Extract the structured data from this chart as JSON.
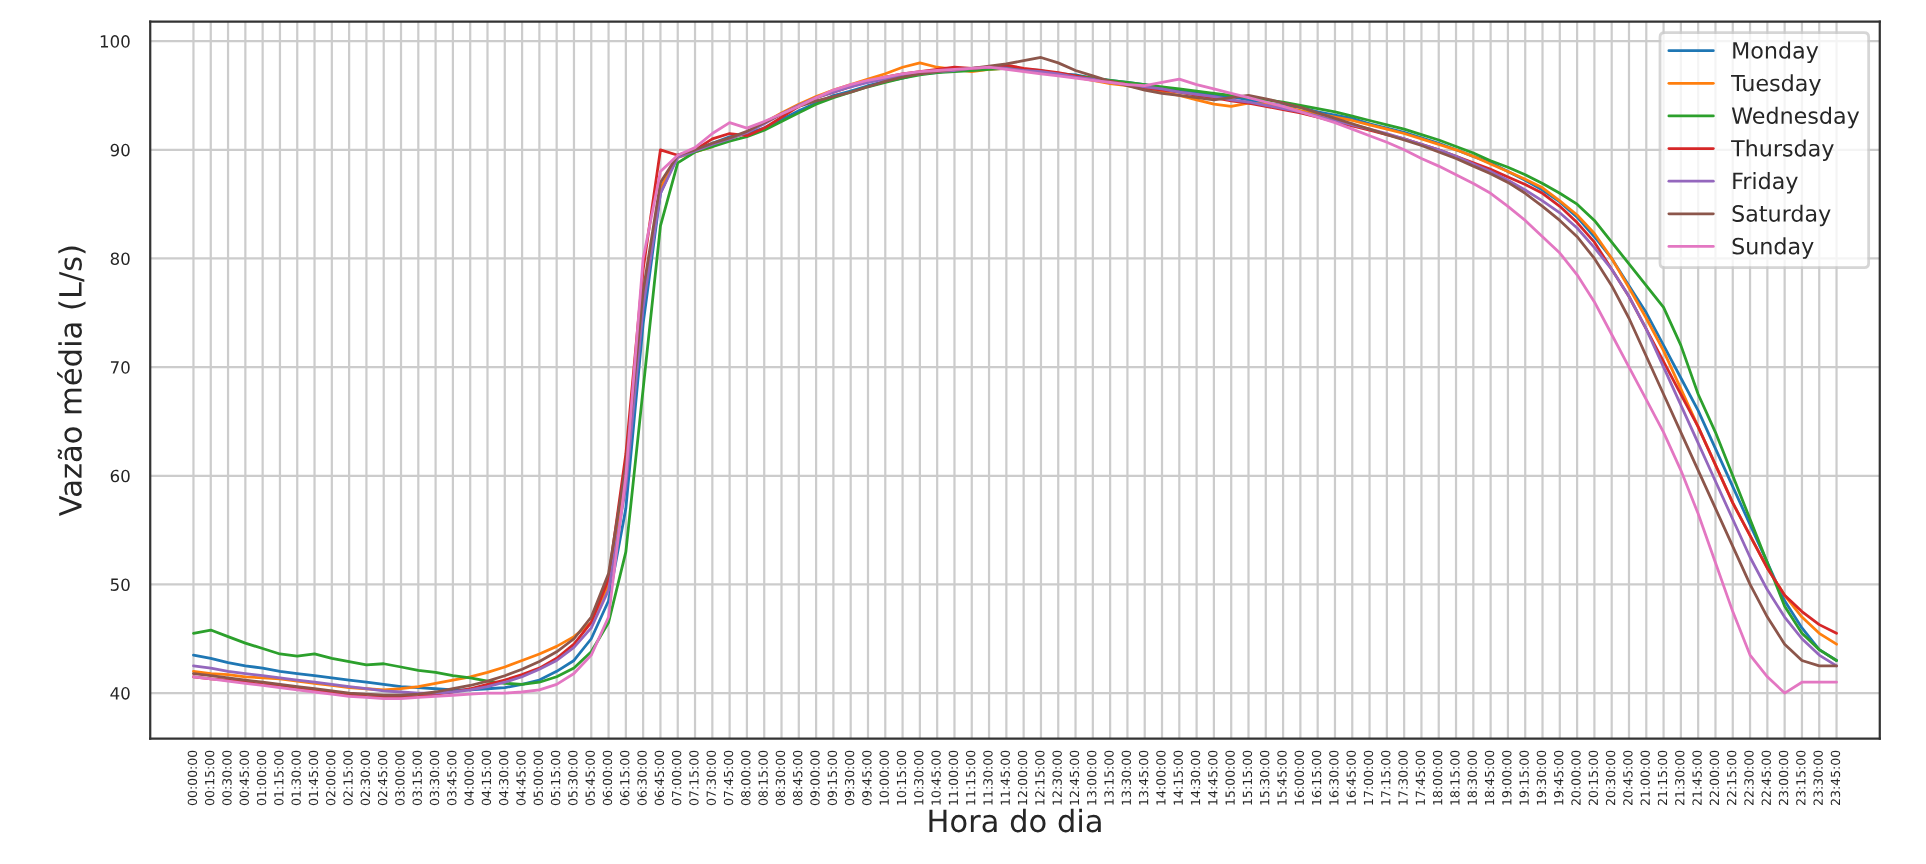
{
  "chart_data": {
    "type": "line",
    "xlabel": "Hora do dia",
    "ylabel": "Vazão média (L/s)",
    "categories": [
      "00:00:00",
      "00:15:00",
      "00:30:00",
      "00:45:00",
      "01:00:00",
      "01:15:00",
      "01:30:00",
      "01:45:00",
      "02:00:00",
      "02:15:00",
      "02:30:00",
      "02:45:00",
      "03:00:00",
      "03:15:00",
      "03:30:00",
      "03:45:00",
      "04:00:00",
      "04:15:00",
      "04:30:00",
      "04:45:00",
      "05:00:00",
      "05:15:00",
      "05:30:00",
      "05:45:00",
      "06:00:00",
      "06:15:00",
      "06:30:00",
      "06:45:00",
      "07:00:00",
      "07:15:00",
      "07:30:00",
      "07:45:00",
      "08:00:00",
      "08:15:00",
      "08:30:00",
      "08:45:00",
      "09:00:00",
      "09:15:00",
      "09:30:00",
      "09:45:00",
      "10:00:00",
      "10:15:00",
      "10:30:00",
      "10:45:00",
      "11:00:00",
      "11:15:00",
      "11:30:00",
      "11:45:00",
      "12:00:00",
      "12:15:00",
      "12:30:00",
      "12:45:00",
      "13:00:00",
      "13:15:00",
      "13:30:00",
      "13:45:00",
      "14:00:00",
      "14:15:00",
      "14:30:00",
      "14:45:00",
      "15:00:00",
      "15:15:00",
      "15:30:00",
      "15:45:00",
      "16:00:00",
      "16:15:00",
      "16:30:00",
      "16:45:00",
      "17:00:00",
      "17:15:00",
      "17:30:00",
      "17:45:00",
      "18:00:00",
      "18:15:00",
      "18:30:00",
      "18:45:00",
      "19:00:00",
      "19:15:00",
      "19:30:00",
      "19:45:00",
      "20:00:00",
      "20:15:00",
      "20:30:00",
      "20:45:00",
      "21:00:00",
      "21:15:00",
      "21:30:00",
      "21:45:00",
      "22:00:00",
      "22:15:00",
      "22:30:00",
      "22:45:00",
      "23:00:00",
      "23:15:00",
      "23:30:00",
      "23:45:00"
    ],
    "ylim": [
      35.8,
      101.8
    ],
    "yticks": [
      40,
      50,
      60,
      70,
      80,
      90,
      100
    ],
    "grid": true,
    "legend": "top right",
    "line_style": "solid",
    "series": [
      {
        "name": "Monday",
        "color": "#1f77b4",
        "values": [
          43.5,
          43.2,
          42.8,
          42.5,
          42.3,
          42.0,
          41.8,
          41.6,
          41.4,
          41.2,
          41.0,
          40.8,
          40.6,
          40.5,
          40.4,
          40.3,
          40.3,
          40.4,
          40.5,
          40.8,
          41.2,
          42.0,
          43.0,
          45.0,
          48.5,
          57.0,
          74.0,
          86.0,
          89.5,
          90.0,
          90.6,
          91.2,
          91.5,
          92.0,
          92.8,
          93.6,
          94.3,
          95.0,
          95.4,
          95.9,
          96.3,
          96.6,
          97.0,
          97.1,
          97.4,
          97.3,
          97.6,
          97.7,
          97.4,
          97.3,
          97.0,
          96.9,
          96.6,
          96.4,
          96.2,
          96.0,
          95.7,
          95.5,
          95.3,
          95.0,
          94.9,
          94.6,
          94.3,
          94.1,
          93.9,
          93.5,
          93.2,
          92.9,
          92.4,
          92.0,
          91.6,
          91.1,
          90.6,
          90.0,
          89.4,
          88.8,
          88.0,
          87.2,
          86.3,
          85.2,
          83.8,
          82.0,
          80.0,
          77.5,
          75.0,
          72.0,
          69.0,
          66.0,
          62.5,
          59.0,
          55.5,
          52.0,
          48.5,
          46.0,
          44.0,
          43.0
        ]
      },
      {
        "name": "Tuesday",
        "color": "#ff7f0e",
        "values": [
          42.0,
          41.8,
          41.7,
          41.5,
          41.4,
          41.3,
          41.1,
          40.9,
          40.7,
          40.5,
          40.4,
          40.3,
          40.4,
          40.6,
          40.9,
          41.2,
          41.5,
          41.9,
          42.4,
          43.0,
          43.6,
          44.3,
          45.2,
          46.5,
          50.0,
          60.0,
          76.0,
          86.5,
          89.3,
          89.8,
          90.3,
          91.0,
          91.6,
          92.5,
          93.4,
          94.2,
          94.9,
          95.5,
          96.0,
          96.5,
          97.0,
          97.6,
          98.0,
          97.6,
          97.4,
          97.2,
          97.4,
          97.5,
          97.3,
          97.1,
          96.9,
          96.7,
          96.4,
          96.1,
          95.9,
          95.6,
          95.3,
          95.0,
          94.6,
          94.2,
          94.0,
          94.3,
          94.2,
          94.0,
          93.6,
          93.3,
          93.0,
          92.7,
          92.3,
          91.9,
          91.5,
          91.0,
          90.5,
          90.0,
          89.4,
          88.7,
          88.0,
          87.3,
          86.5,
          85.3,
          84.0,
          82.3,
          80.0,
          77.3,
          74.5,
          71.5,
          68.0,
          64.5,
          61.0,
          57.5,
          54.5,
          51.5,
          49.0,
          47.0,
          45.5,
          44.5
        ]
      },
      {
        "name": "Wednesday",
        "color": "#2ca02c",
        "values": [
          45.5,
          45.8,
          45.2,
          44.6,
          44.1,
          43.6,
          43.4,
          43.6,
          43.2,
          42.9,
          42.6,
          42.7,
          42.4,
          42.1,
          41.9,
          41.6,
          41.4,
          41.1,
          40.9,
          40.8,
          41.0,
          41.5,
          42.3,
          43.8,
          46.5,
          53.0,
          68.0,
          83.0,
          88.8,
          89.8,
          90.3,
          90.8,
          91.2,
          91.8,
          92.6,
          93.4,
          94.2,
          94.8,
          95.3,
          95.8,
          96.2,
          96.6,
          96.9,
          97.1,
          97.2,
          97.3,
          97.4,
          97.5,
          97.4,
          97.2,
          97.0,
          96.8,
          96.6,
          96.4,
          96.2,
          96.0,
          95.8,
          95.6,
          95.4,
          95.2,
          95.0,
          94.8,
          94.6,
          94.4,
          94.1,
          93.8,
          93.5,
          93.1,
          92.7,
          92.3,
          91.9,
          91.4,
          90.9,
          90.3,
          89.7,
          89.0,
          88.4,
          87.7,
          86.9,
          86.0,
          85.0,
          83.5,
          81.5,
          79.5,
          77.5,
          75.5,
          72.0,
          67.5,
          64.0,
          60.0,
          56.0,
          52.0,
          48.0,
          45.5,
          44.0,
          43.0
        ]
      },
      {
        "name": "Thursday",
        "color": "#d62728",
        "values": [
          41.5,
          41.3,
          41.2,
          41.0,
          40.8,
          40.7,
          40.5,
          40.3,
          40.1,
          39.9,
          39.7,
          39.6,
          39.6,
          39.7,
          39.9,
          40.1,
          40.4,
          40.8,
          41.2,
          41.7,
          42.3,
          43.2,
          44.5,
          46.5,
          50.5,
          62.0,
          79.0,
          90.0,
          89.5,
          90.0,
          91.0,
          91.5,
          91.3,
          92.0,
          93.0,
          94.0,
          94.8,
          95.3,
          95.8,
          96.3,
          96.7,
          97.0,
          97.2,
          97.4,
          97.6,
          97.5,
          97.6,
          97.8,
          97.5,
          97.3,
          97.1,
          96.8,
          96.5,
          96.3,
          96.0,
          95.7,
          95.5,
          95.3,
          95.0,
          94.8,
          94.5,
          94.3,
          94.0,
          93.7,
          93.4,
          93.0,
          92.6,
          92.2,
          91.8,
          91.4,
          91.0,
          90.5,
          90.0,
          89.4,
          88.8,
          88.2,
          87.5,
          86.8,
          86.0,
          84.8,
          83.3,
          81.5,
          79.0,
          76.5,
          73.5,
          70.5,
          67.5,
          64.5,
          61.0,
          57.5,
          54.5,
          51.5,
          49.0,
          47.5,
          46.3,
          45.5
        ]
      },
      {
        "name": "Friday",
        "color": "#9467bd",
        "values": [
          42.5,
          42.3,
          42.0,
          41.8,
          41.6,
          41.4,
          41.2,
          41.0,
          40.8,
          40.6,
          40.4,
          40.2,
          40.1,
          40.0,
          40.0,
          40.1,
          40.3,
          40.6,
          41.0,
          41.5,
          42.2,
          43.0,
          44.2,
          46.0,
          49.5,
          59.0,
          75.5,
          86.0,
          89.3,
          89.9,
          90.5,
          91.0,
          91.6,
          92.4,
          93.3,
          94.1,
          94.8,
          95.3,
          95.8,
          96.2,
          96.5,
          96.8,
          97.0,
          97.2,
          97.3,
          97.5,
          97.6,
          97.5,
          97.3,
          97.2,
          97.0,
          96.7,
          96.5,
          96.2,
          96.0,
          95.8,
          95.6,
          95.3,
          95.1,
          94.9,
          94.6,
          94.4,
          94.1,
          93.8,
          93.5,
          93.1,
          92.7,
          92.3,
          91.9,
          91.5,
          91.0,
          90.5,
          90.0,
          89.4,
          88.7,
          88.0,
          87.2,
          86.3,
          85.3,
          84.2,
          82.8,
          81.0,
          79.0,
          76.5,
          73.5,
          70.0,
          66.5,
          63.0,
          59.5,
          56.0,
          52.5,
          49.5,
          47.0,
          45.0,
          43.5,
          42.5
        ]
      },
      {
        "name": "Saturday",
        "color": "#8c564b",
        "values": [
          41.8,
          41.6,
          41.4,
          41.2,
          41.0,
          40.8,
          40.6,
          40.4,
          40.2,
          40.0,
          39.9,
          39.8,
          39.8,
          39.9,
          40.1,
          40.4,
          40.7,
          41.1,
          41.6,
          42.2,
          42.9,
          43.8,
          45.0,
          47.0,
          51.0,
          61.0,
          77.0,
          87.0,
          89.5,
          90.0,
          90.6,
          91.1,
          91.7,
          92.5,
          93.3,
          94.0,
          94.5,
          94.9,
          95.3,
          95.8,
          96.3,
          96.7,
          97.0,
          97.2,
          97.4,
          97.5,
          97.7,
          97.9,
          98.2,
          98.5,
          98.0,
          97.3,
          96.8,
          96.3,
          95.9,
          95.5,
          95.2,
          95.0,
          94.8,
          94.6,
          94.8,
          95.0,
          94.7,
          94.3,
          93.9,
          93.4,
          92.9,
          92.4,
          91.9,
          91.4,
          90.9,
          90.4,
          89.8,
          89.2,
          88.5,
          87.8,
          87.0,
          86.0,
          84.8,
          83.5,
          82.0,
          80.0,
          77.5,
          74.5,
          71.0,
          67.5,
          64.0,
          60.5,
          57.0,
          53.5,
          50.0,
          47.0,
          44.5,
          43.0,
          42.5,
          42.5
        ]
      },
      {
        "name": "Sunday",
        "color": "#e377c2",
        "values": [
          41.5,
          41.3,
          41.1,
          40.9,
          40.7,
          40.5,
          40.3,
          40.1,
          39.9,
          39.7,
          39.6,
          39.5,
          39.5,
          39.6,
          39.7,
          39.8,
          39.9,
          40.0,
          40.0,
          40.1,
          40.3,
          40.8,
          41.8,
          43.5,
          47.0,
          60.0,
          80.0,
          88.0,
          89.5,
          90.2,
          91.5,
          92.5,
          92.0,
          92.6,
          93.3,
          94.0,
          94.8,
          95.5,
          96.0,
          96.4,
          96.7,
          97.0,
          97.2,
          97.3,
          97.4,
          97.5,
          97.6,
          97.4,
          97.2,
          97.0,
          96.8,
          96.6,
          96.4,
          96.2,
          96.0,
          95.9,
          96.2,
          96.5,
          96.0,
          95.6,
          95.2,
          94.8,
          94.4,
          94.0,
          93.5,
          93.0,
          92.5,
          91.9,
          91.3,
          90.7,
          90.0,
          89.2,
          88.5,
          87.7,
          86.9,
          86.0,
          84.8,
          83.5,
          82.0,
          80.5,
          78.5,
          76.0,
          73.0,
          70.0,
          67.0,
          64.0,
          60.5,
          56.5,
          52.0,
          47.5,
          43.5,
          41.5,
          40.0,
          41.0,
          41.0,
          41.0
        ]
      }
    ]
  }
}
